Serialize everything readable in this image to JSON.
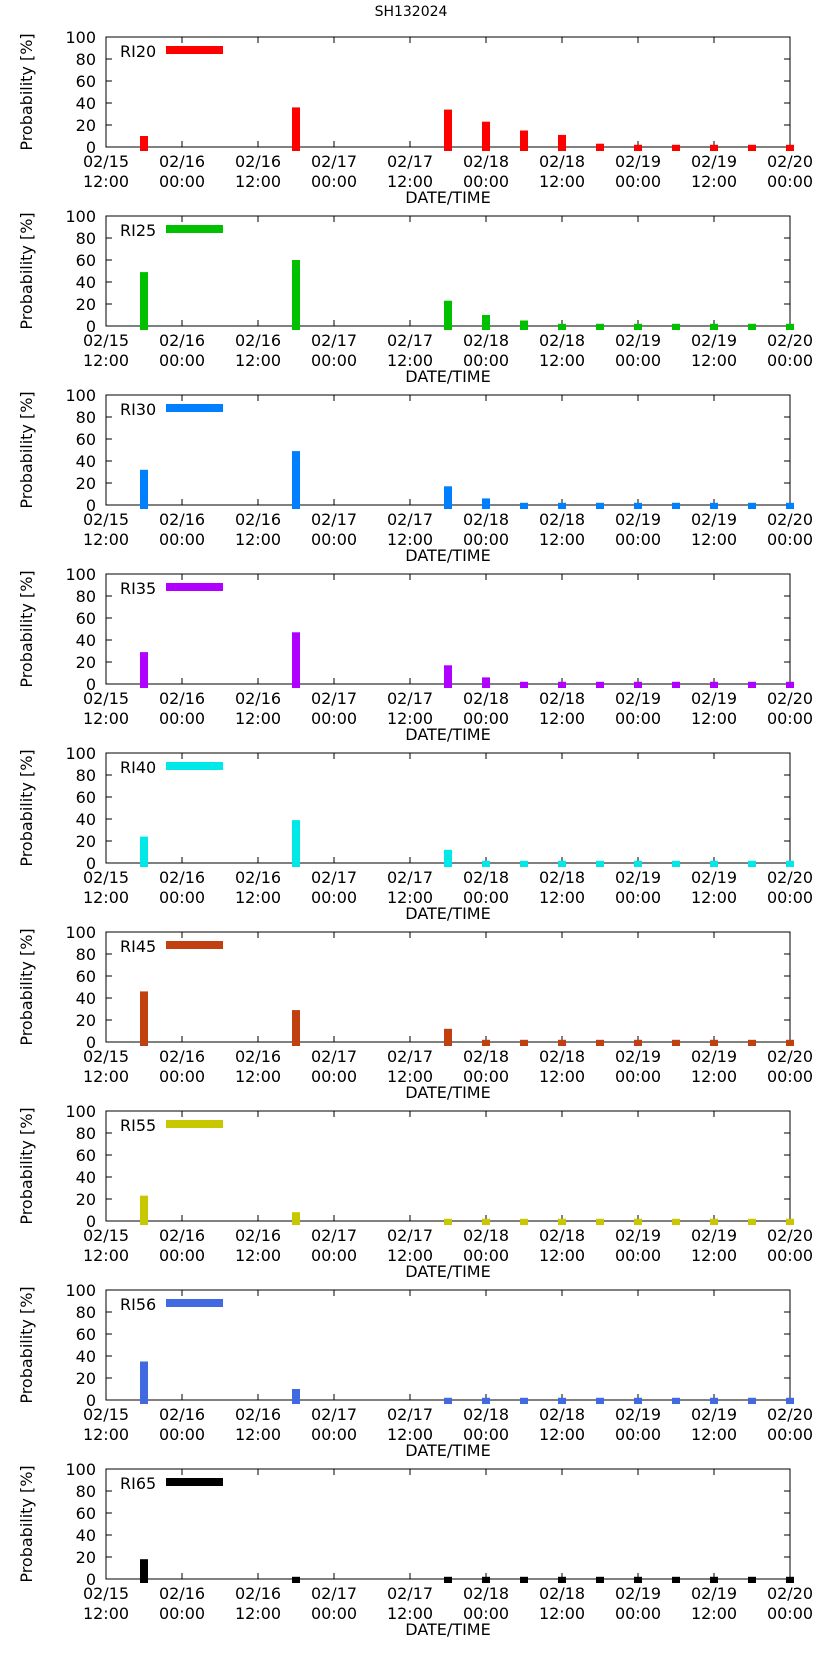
{
  "title": "SH132024",
  "chart_data": [
    {
      "type": "bar",
      "title": "SH132024",
      "legend": "RI20",
      "color": "#ff0000",
      "xlabel": "DATE/TIME",
      "ylabel": "Probability [%]",
      "ylim": [
        0,
        100
      ],
      "yticks": [
        "0",
        "20",
        "40",
        "60",
        "80",
        "100"
      ],
      "xticks": [
        [
          "02/15",
          "12:00"
        ],
        [
          "02/16",
          "00:00"
        ],
        [
          "02/16",
          "12:00"
        ],
        [
          "02/17",
          "00:00"
        ],
        [
          "02/17",
          "12:00"
        ],
        [
          "02/18",
          "00:00"
        ],
        [
          "02/18",
          "12:00"
        ],
        [
          "02/19",
          "00:00"
        ],
        [
          "02/19",
          "12:00"
        ],
        [
          "02/20",
          "00:00"
        ]
      ],
      "x_hours": [
        6,
        30,
        54,
        60,
        66,
        72,
        78,
        84,
        90,
        96,
        102,
        108
      ],
      "values": [
        10,
        36,
        34,
        23,
        15,
        11,
        3,
        2,
        2,
        2,
        2,
        2
      ]
    },
    {
      "type": "bar",
      "legend": "RI25",
      "color": "#00c000",
      "xlabel": "DATE/TIME",
      "ylabel": "Probability [%]",
      "ylim": [
        0,
        100
      ],
      "yticks": [
        "0",
        "20",
        "40",
        "60",
        "80",
        "100"
      ],
      "xticks": [
        [
          "02/15",
          "12:00"
        ],
        [
          "02/16",
          "00:00"
        ],
        [
          "02/16",
          "12:00"
        ],
        [
          "02/17",
          "00:00"
        ],
        [
          "02/17",
          "12:00"
        ],
        [
          "02/18",
          "00:00"
        ],
        [
          "02/18",
          "12:00"
        ],
        [
          "02/19",
          "00:00"
        ],
        [
          "02/19",
          "12:00"
        ],
        [
          "02/20",
          "00:00"
        ]
      ],
      "x_hours": [
        6,
        30,
        54,
        60,
        66,
        72,
        78,
        84,
        90,
        96,
        102,
        108
      ],
      "values": [
        49,
        60,
        23,
        10,
        5,
        2,
        2,
        2,
        2,
        2,
        2,
        2
      ]
    },
    {
      "type": "bar",
      "legend": "RI30",
      "color": "#0080ff",
      "xlabel": "DATE/TIME",
      "ylabel": "Probability [%]",
      "ylim": [
        0,
        100
      ],
      "yticks": [
        "0",
        "20",
        "40",
        "60",
        "80",
        "100"
      ],
      "xticks": [
        [
          "02/15",
          "12:00"
        ],
        [
          "02/16",
          "00:00"
        ],
        [
          "02/16",
          "12:00"
        ],
        [
          "02/17",
          "00:00"
        ],
        [
          "02/17",
          "12:00"
        ],
        [
          "02/18",
          "00:00"
        ],
        [
          "02/18",
          "12:00"
        ],
        [
          "02/19",
          "00:00"
        ],
        [
          "02/19",
          "12:00"
        ],
        [
          "02/20",
          "00:00"
        ]
      ],
      "x_hours": [
        6,
        30,
        54,
        60,
        66,
        72,
        78,
        84,
        90,
        96,
        102,
        108
      ],
      "values": [
        32,
        49,
        17,
        6,
        2,
        2,
        2,
        2,
        2,
        2,
        2,
        2
      ]
    },
    {
      "type": "bar",
      "legend": "RI35",
      "color": "#b000ff",
      "xlabel": "DATE/TIME",
      "ylabel": "Probability [%]",
      "ylim": [
        0,
        100
      ],
      "yticks": [
        "0",
        "20",
        "40",
        "60",
        "80",
        "100"
      ],
      "xticks": [
        [
          "02/15",
          "12:00"
        ],
        [
          "02/16",
          "00:00"
        ],
        [
          "02/16",
          "12:00"
        ],
        [
          "02/17",
          "00:00"
        ],
        [
          "02/17",
          "12:00"
        ],
        [
          "02/18",
          "00:00"
        ],
        [
          "02/18",
          "12:00"
        ],
        [
          "02/19",
          "00:00"
        ],
        [
          "02/19",
          "12:00"
        ],
        [
          "02/20",
          "00:00"
        ]
      ],
      "x_hours": [
        6,
        30,
        54,
        60,
        66,
        72,
        78,
        84,
        90,
        96,
        102,
        108
      ],
      "values": [
        29,
        47,
        17,
        6,
        2,
        2,
        2,
        2,
        2,
        2,
        2,
        2
      ]
    },
    {
      "type": "bar",
      "legend": "RI40",
      "color": "#00e8e8",
      "xlabel": "DATE/TIME",
      "ylabel": "Probability [%]",
      "ylim": [
        0,
        100
      ],
      "yticks": [
        "0",
        "20",
        "40",
        "60",
        "80",
        "100"
      ],
      "xticks": [
        [
          "02/15",
          "12:00"
        ],
        [
          "02/16",
          "00:00"
        ],
        [
          "02/16",
          "12:00"
        ],
        [
          "02/17",
          "00:00"
        ],
        [
          "02/17",
          "12:00"
        ],
        [
          "02/18",
          "00:00"
        ],
        [
          "02/18",
          "12:00"
        ],
        [
          "02/19",
          "00:00"
        ],
        [
          "02/19",
          "12:00"
        ],
        [
          "02/20",
          "00:00"
        ]
      ],
      "x_hours": [
        6,
        30,
        54,
        60,
        66,
        72,
        78,
        84,
        90,
        96,
        102,
        108
      ],
      "values": [
        24,
        39,
        12,
        2,
        2,
        2,
        2,
        2,
        2,
        2,
        2,
        2
      ]
    },
    {
      "type": "bar",
      "legend": "RI45",
      "color": "#c04010",
      "xlabel": "DATE/TIME",
      "ylabel": "Probability [%]",
      "ylim": [
        0,
        100
      ],
      "yticks": [
        "0",
        "20",
        "40",
        "60",
        "80",
        "100"
      ],
      "xticks": [
        [
          "02/15",
          "12:00"
        ],
        [
          "02/16",
          "00:00"
        ],
        [
          "02/16",
          "12:00"
        ],
        [
          "02/17",
          "00:00"
        ],
        [
          "02/17",
          "12:00"
        ],
        [
          "02/18",
          "00:00"
        ],
        [
          "02/18",
          "12:00"
        ],
        [
          "02/19",
          "00:00"
        ],
        [
          "02/19",
          "12:00"
        ],
        [
          "02/20",
          "00:00"
        ]
      ],
      "x_hours": [
        6,
        30,
        54,
        60,
        66,
        72,
        78,
        84,
        90,
        96,
        102,
        108
      ],
      "values": [
        46,
        29,
        12,
        2,
        2,
        2,
        2,
        2,
        2,
        2,
        2,
        2
      ]
    },
    {
      "type": "bar",
      "legend": "RI55",
      "color": "#c8c800",
      "xlabel": "DATE/TIME",
      "ylabel": "Probability [%]",
      "ylim": [
        0,
        100
      ],
      "yticks": [
        "0",
        "20",
        "40",
        "60",
        "80",
        "100"
      ],
      "xticks": [
        [
          "02/15",
          "12:00"
        ],
        [
          "02/16",
          "00:00"
        ],
        [
          "02/16",
          "12:00"
        ],
        [
          "02/17",
          "00:00"
        ],
        [
          "02/17",
          "12:00"
        ],
        [
          "02/18",
          "00:00"
        ],
        [
          "02/18",
          "12:00"
        ],
        [
          "02/19",
          "00:00"
        ],
        [
          "02/19",
          "12:00"
        ],
        [
          "02/20",
          "00:00"
        ]
      ],
      "x_hours": [
        6,
        30,
        54,
        60,
        66,
        72,
        78,
        84,
        90,
        96,
        102,
        108
      ],
      "values": [
        23,
        8,
        2,
        2,
        2,
        2,
        2,
        2,
        2,
        2,
        2,
        2
      ]
    },
    {
      "type": "bar",
      "legend": "RI56",
      "color": "#4169e1",
      "xlabel": "DATE/TIME",
      "ylabel": "Probability [%]",
      "ylim": [
        0,
        100
      ],
      "yticks": [
        "0",
        "20",
        "40",
        "60",
        "80",
        "100"
      ],
      "xticks": [
        [
          "02/15",
          "12:00"
        ],
        [
          "02/16",
          "00:00"
        ],
        [
          "02/16",
          "12:00"
        ],
        [
          "02/17",
          "00:00"
        ],
        [
          "02/17",
          "12:00"
        ],
        [
          "02/18",
          "00:00"
        ],
        [
          "02/18",
          "12:00"
        ],
        [
          "02/19",
          "00:00"
        ],
        [
          "02/19",
          "12:00"
        ],
        [
          "02/20",
          "00:00"
        ]
      ],
      "x_hours": [
        6,
        30,
        54,
        60,
        66,
        72,
        78,
        84,
        90,
        96,
        102,
        108
      ],
      "values": [
        35,
        10,
        2,
        2,
        2,
        2,
        2,
        2,
        2,
        2,
        2,
        2
      ]
    },
    {
      "type": "bar",
      "legend": "RI65",
      "color": "#000000",
      "xlabel": "DATE/TIME",
      "ylabel": "Probability [%]",
      "ylim": [
        0,
        100
      ],
      "yticks": [
        "0",
        "20",
        "40",
        "60",
        "80",
        "100"
      ],
      "xticks": [
        [
          "02/15",
          "12:00"
        ],
        [
          "02/16",
          "00:00"
        ],
        [
          "02/16",
          "12:00"
        ],
        [
          "02/17",
          "00:00"
        ],
        [
          "02/17",
          "12:00"
        ],
        [
          "02/18",
          "00:00"
        ],
        [
          "02/18",
          "12:00"
        ],
        [
          "02/19",
          "00:00"
        ],
        [
          "02/19",
          "12:00"
        ],
        [
          "02/20",
          "00:00"
        ]
      ],
      "x_hours": [
        6,
        30,
        54,
        60,
        66,
        72,
        78,
        84,
        90,
        96,
        102,
        108
      ],
      "values": [
        18,
        2,
        2,
        2,
        2,
        2,
        2,
        2,
        2,
        2,
        2,
        2
      ]
    }
  ]
}
